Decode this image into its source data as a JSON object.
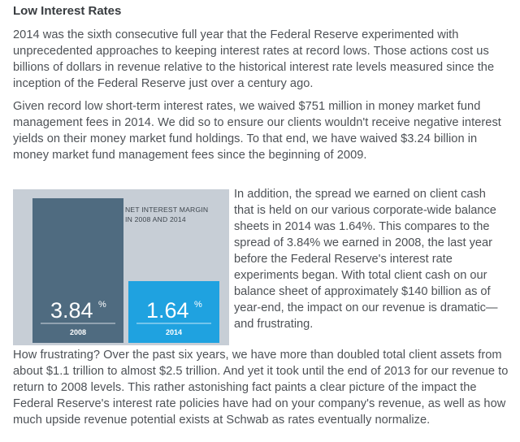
{
  "heading": "Low Interest Rates",
  "paragraphs": {
    "p1": "2014 was the sixth consecutive full year that the Federal Reserve experimented with unprecedented approaches to keeping interest rates at record lows. Those actions cost us billions of dollars in revenue relative to the historical interest rate levels measured since the inception of the Federal Reserve just over a century ago.",
    "p2": "Given record low short-term interest rates, we waived $751 million in money market fund management fees in 2014. We did so to ensure our clients wouldn't receive negative interest yields on their money market fund holdings. To that end, we have waived $3.24 billion in money market fund management fees since the beginning of 2009.",
    "p3": "In addition, the spread we earned on client cash that is held on our various corporate-wide balance sheets in 2014 was 1.64%. This compares to the spread of 3.84% we earned in 2008, the last year before the Federal Reserve's interest rate experiments began. With total client cash on our balance sheet of approximately $140 billion as of year-end, the impact on our revenue is dramatic—and frustrating.",
    "p4": "How frustrating? Over the past six years, we have more than doubled total client assets from about $1.1 trillion to almost $2.5 trillion. And yet it took until the end of 2013 for our revenue to return to 2008 levels. This rather astonishing fact paints a clear picture of the impact the Federal Reserve's interest rate policies have had on your company's revenue, as well as how much upside revenue potential exists at Schwab as rates eventually normalize."
  },
  "chart_data": {
    "type": "bar",
    "title_lines": [
      "NET INTEREST MARGIN",
      "IN 2008 AND 2014"
    ],
    "categories": [
      "2008",
      "2014"
    ],
    "values": [
      3.84,
      1.64
    ],
    "value_labels": [
      "3.84",
      "1.64"
    ],
    "unit_symbol": "%",
    "colors": [
      "#4f6b80",
      "#1fa2e0"
    ],
    "background_color": "#c7ced6",
    "ylim": [
      0,
      3.84
    ]
  }
}
